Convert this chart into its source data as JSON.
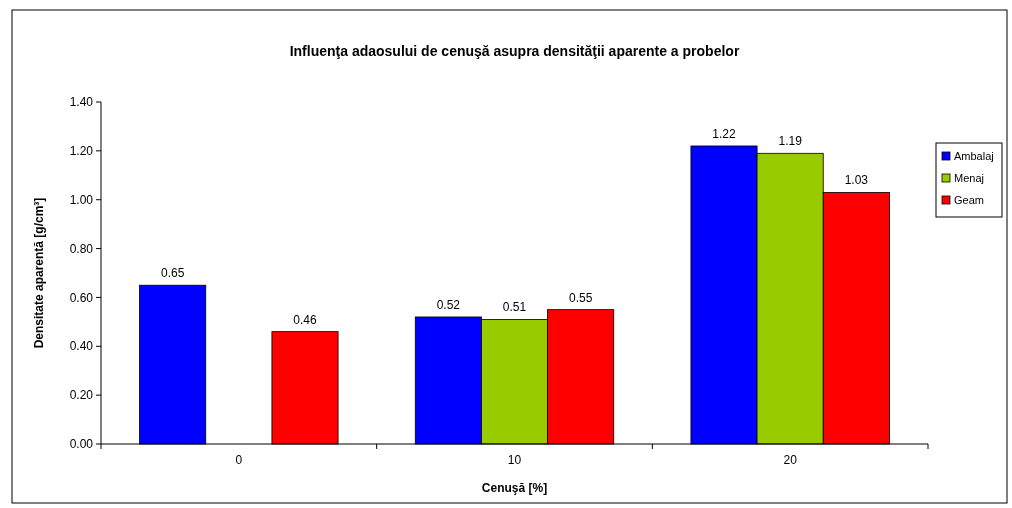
{
  "chart_data": {
    "type": "bar",
    "title": "Influenţa adaosului de cenuşă asupra densităţii aparente a probelor",
    "xlabel": "Cenuşă [%]",
    "ylabel": "Densitate aparentă [g/cm³]",
    "categories": [
      "0",
      "10",
      "20"
    ],
    "series": [
      {
        "name": "Ambalaj",
        "color": "#0000ff",
        "values": [
          0.65,
          0.52,
          1.22
        ]
      },
      {
        "name": "Menaj",
        "color": "#99cc00",
        "values": [
          null,
          0.51,
          1.19
        ]
      },
      {
        "name": "Geam",
        "color": "#ff0000",
        "values": [
          0.46,
          0.55,
          1.03
        ]
      }
    ],
    "ylim": [
      0,
      1.4
    ],
    "yticks": [
      {
        "value": 0,
        "label": "0.00"
      },
      {
        "value": 0.2,
        "label": "0.20"
      },
      {
        "value": 0.4,
        "label": "0.40"
      },
      {
        "value": 0.6,
        "label": "0.60"
      },
      {
        "value": 0.8,
        "label": "0.80"
      },
      {
        "value": 1.0,
        "label": "1.00"
      },
      {
        "value": 1.2,
        "label": "1.20"
      },
      {
        "value": 1.4,
        "label": "1.40"
      }
    ],
    "data_labels": true,
    "legend": "right",
    "grid": false
  }
}
